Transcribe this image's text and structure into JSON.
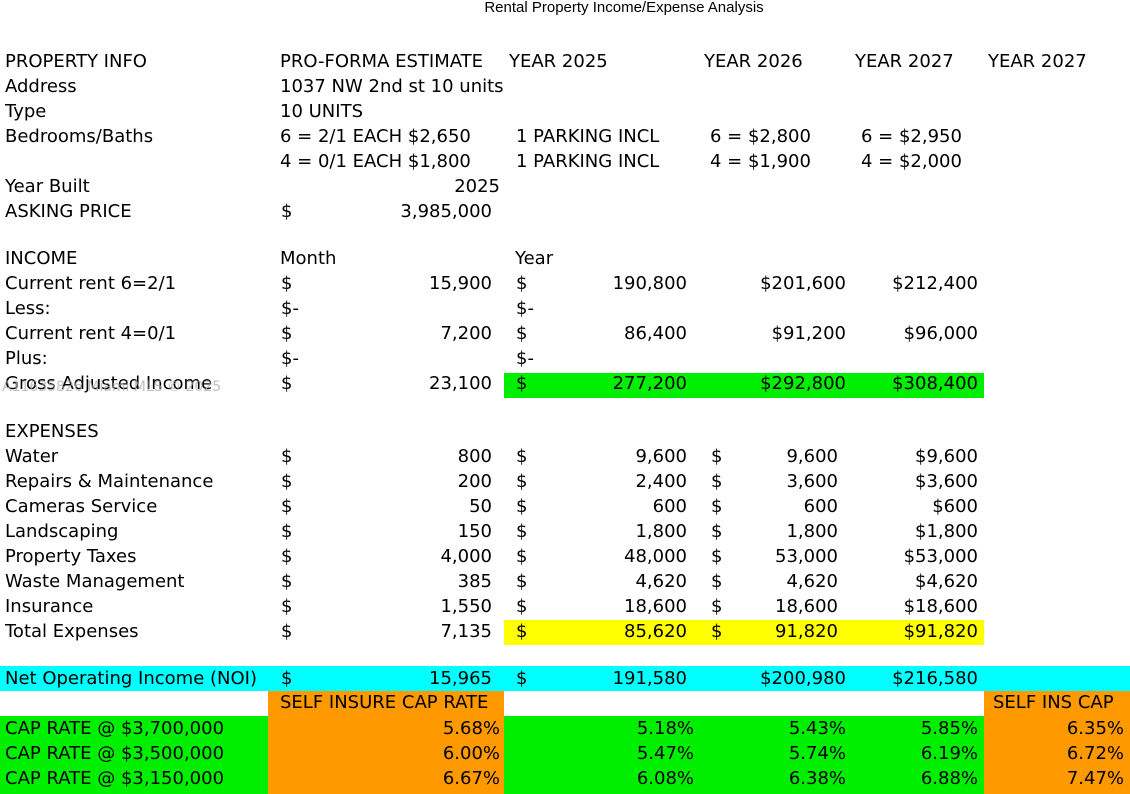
{
  "title": "Rental Property Income/Expense Analysis",
  "watermark": "A11635826 Miami MLS © 2025",
  "colors": {
    "green": "#00ee00",
    "yellow": "#ffff00",
    "cyan": "#00ffff",
    "orange": "#ff9900"
  },
  "header": {
    "property_info": "PROPERTY INFO",
    "proforma": "PRO-FORMA ESTIMATE",
    "year_a": "YEAR 2025",
    "year_b": "YEAR 2026",
    "year_c": "YEAR 2027",
    "year_d": "YEAR 2027"
  },
  "property": {
    "address_label": "Address",
    "address_value": "1037 NW 2nd st 10 units",
    "type_label": "Type",
    "type_value": "10 UNITS",
    "bedrooms_label": "Bedrooms/Baths",
    "unit1_proforma": "6 = 2/1 EACH $2,650",
    "unit1_2025": "1 PARKING INCL",
    "unit1_2026": "6 = $2,800",
    "unit1_2027": "6 = $2,950",
    "unit2_proforma": "4 = 0/1 EACH $1,800",
    "unit2_2025": "1 PARKING INCL",
    "unit2_2026": "4 = $1,900",
    "unit2_2027": "4 = $2,000",
    "year_built_label": "Year Built",
    "year_built_value": "2025",
    "asking_label": "ASKING PRICE",
    "asking_dollar": "$",
    "asking_value": "3,985,000"
  },
  "income": {
    "label": "INCOME",
    "month_header": "Month",
    "year_header": "Year",
    "rows": [
      {
        "label": "Current rent 6=2/1",
        "mdollar": "$",
        "month": "15,900",
        "ydollar": "$",
        "year": "190,800",
        "y2026": "$201,600",
        "y2027": "$212,400"
      },
      {
        "label": "Less:",
        "mdollar": "$-",
        "month": "",
        "ydollar": "$-",
        "year": "",
        "y2026": "",
        "y2027": ""
      },
      {
        "label": "Current rent 4=0/1",
        "mdollar": "$",
        "month": "7,200",
        "ydollar": "$",
        "year": "86,400",
        "y2026": "$91,200",
        "y2027": "$96,000"
      },
      {
        "label": "Plus:",
        "mdollar": "$-",
        "month": "",
        "ydollar": "$-",
        "year": "",
        "y2026": "",
        "y2027": ""
      },
      {
        "label": "Gross Adjusted Income",
        "mdollar": "$",
        "month": "23,100",
        "ydollar": "$",
        "year": "277,200",
        "y2026": "$292,800",
        "y2027": "$308,400"
      }
    ]
  },
  "expenses": {
    "label": "EXPENSES",
    "rows": [
      {
        "label": "Water",
        "mdollar": "$",
        "month": "800",
        "ydollar": "$",
        "year": "9,600",
        "d2026": "$",
        "y2026": "9,600",
        "y2027": "$9,600"
      },
      {
        "label": "Repairs & Maintenance",
        "mdollar": "$",
        "month": "200",
        "ydollar": "$",
        "year": "2,400",
        "d2026": "$",
        "y2026": "3,600",
        "y2027": "$3,600"
      },
      {
        "label": "Cameras Service",
        "mdollar": "$",
        "month": "50",
        "ydollar": "$",
        "year": "600",
        "d2026": "$",
        "y2026": "600",
        "y2027": "$600"
      },
      {
        "label": "Landscaping",
        "mdollar": "$",
        "month": "150",
        "ydollar": "$",
        "year": "1,800",
        "d2026": "$",
        "y2026": "1,800",
        "y2027": "$1,800"
      },
      {
        "label": "Property Taxes",
        "mdollar": "$",
        "month": "4,000",
        "ydollar": "$",
        "year": "48,000",
        "d2026": "$",
        "y2026": "53,000",
        "y2027": "$53,000"
      },
      {
        "label": "Waste Management",
        "mdollar": "$",
        "month": "385",
        "ydollar": "$",
        "year": "4,620",
        "d2026": "$",
        "y2026": "4,620",
        "y2027": "$4,620"
      },
      {
        "label": "Insurance",
        "mdollar": "$",
        "month": "1,550",
        "ydollar": "$",
        "year": "18,600",
        "d2026": "$",
        "y2026": "18,600",
        "y2027": "$18,600"
      },
      {
        "label": "Total Expenses",
        "mdollar": "$",
        "month": "7,135",
        "ydollar": "$",
        "year": "85,620",
        "d2026": "$",
        "y2026": "91,820",
        "y2027": "$91,820"
      }
    ]
  },
  "noi": {
    "label": "Net Operating Income (NOI)",
    "mdollar": "$",
    "month": "15,965",
    "ydollar": "$",
    "year": "191,580",
    "y2026": "$200,980",
    "y2027": "$216,580"
  },
  "cap": {
    "self_insure_header": "SELF INSURE CAP RATE",
    "self_ins_header": "SELF INS CAP",
    "rows": [
      {
        "label": "CAP RATE @ $3,700,000",
        "self": "5.68%",
        "y2025": "5.18%",
        "y2026": "5.43%",
        "y2027": "5.85%",
        "self2": "6.35%"
      },
      {
        "label": "CAP RATE @ $3,500,000",
        "self": "6.00%",
        "y2025": "5.47%",
        "y2026": "5.74%",
        "y2027": "6.19%",
        "self2": "6.72%"
      },
      {
        "label": "CAP RATE @ $3,150,000",
        "self": "6.67%",
        "y2025": "6.08%",
        "y2026": "6.38%",
        "y2027": "6.88%",
        "self2": "7.47%"
      }
    ]
  }
}
